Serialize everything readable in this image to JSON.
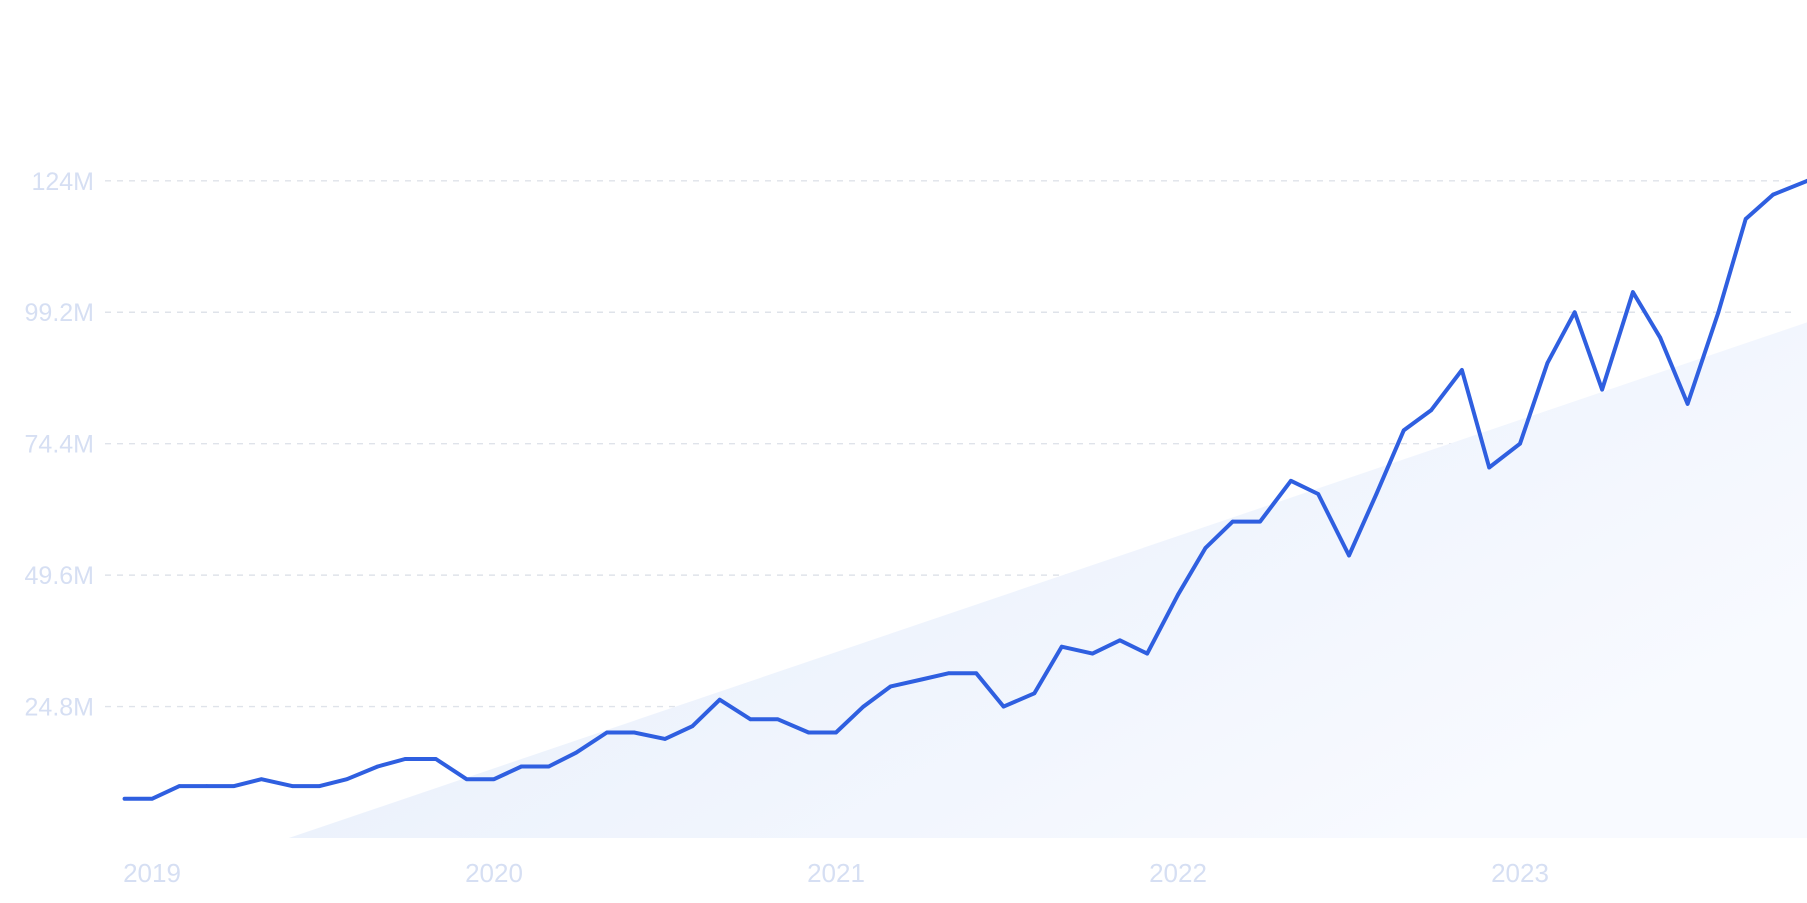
{
  "chart_data": {
    "type": "line",
    "title": "",
    "xlabel": "",
    "ylabel": "",
    "y_ticks": [
      "124M",
      "99.2M",
      "74.4M",
      "49.6M",
      "24.8M"
    ],
    "y_tick_values": [
      124,
      99.2,
      74.4,
      49.6,
      24.8
    ],
    "x_ticks": [
      "2019",
      "2020",
      "2021",
      "2022",
      "2023"
    ],
    "x_tick_values": [
      2019,
      2020,
      2021,
      2022,
      2023
    ],
    "ylim": [
      0,
      124
    ],
    "xlim": [
      2018.92,
      2023.84
    ],
    "grid": true,
    "legend": "none",
    "colors": {
      "line": "#2f5fe0",
      "trend_fill": "#e6eefa",
      "tick_text": "#d6dff3",
      "grid": "#dfe3ea"
    },
    "trend": {
      "x": [
        2019.4,
        2023.84
      ],
      "y": [
        0,
        97.3
      ]
    },
    "series": [
      {
        "x": [
          2018.92,
          2019.0,
          2019.08,
          2019.16,
          2019.24,
          2019.32,
          2019.41,
          2019.49,
          2019.57,
          2019.66,
          2019.74,
          2019.83,
          2019.92,
          2020.0,
          2020.08,
          2020.16,
          2020.24,
          2020.33,
          2020.41,
          2020.5,
          2020.58,
          2020.66,
          2020.75,
          2020.83,
          2020.92,
          2021.0,
          2021.08,
          2021.16,
          2021.25,
          2021.33,
          2021.41,
          2021.49,
          2021.58,
          2021.66,
          2021.75,
          2021.83,
          2021.91,
          2022.0,
          2022.08,
          2022.16,
          2022.24,
          2022.33,
          2022.41,
          2022.5,
          2022.58,
          2022.66,
          2022.74,
          2022.83,
          2022.91,
          2023.0,
          2023.08,
          2023.16,
          2023.24,
          2023.33,
          2023.41,
          2023.49,
          2023.58,
          2023.66,
          2023.74,
          2023.84
        ],
        "y": [
          7.4,
          7.4,
          9.8,
          9.8,
          9.8,
          11.1,
          9.8,
          9.8,
          11.1,
          13.5,
          14.9,
          14.9,
          11.1,
          11.1,
          13.5,
          13.5,
          16.1,
          19.9,
          19.9,
          18.7,
          21.1,
          26.1,
          22.4,
          22.4,
          19.9,
          19.9,
          24.8,
          28.6,
          29.9,
          31.1,
          31.1,
          24.8,
          27.3,
          36.1,
          34.8,
          37.3,
          34.8,
          45.9,
          54.7,
          59.7,
          59.7,
          67.4,
          64.9,
          53.3,
          64.9,
          76.9,
          80.7,
          88.3,
          69.9,
          74.4,
          89.6,
          99.2,
          84.6,
          103.0,
          94.4,
          81.9,
          99.2,
          116.8,
          121.4,
          124.0
        ]
      }
    ]
  }
}
